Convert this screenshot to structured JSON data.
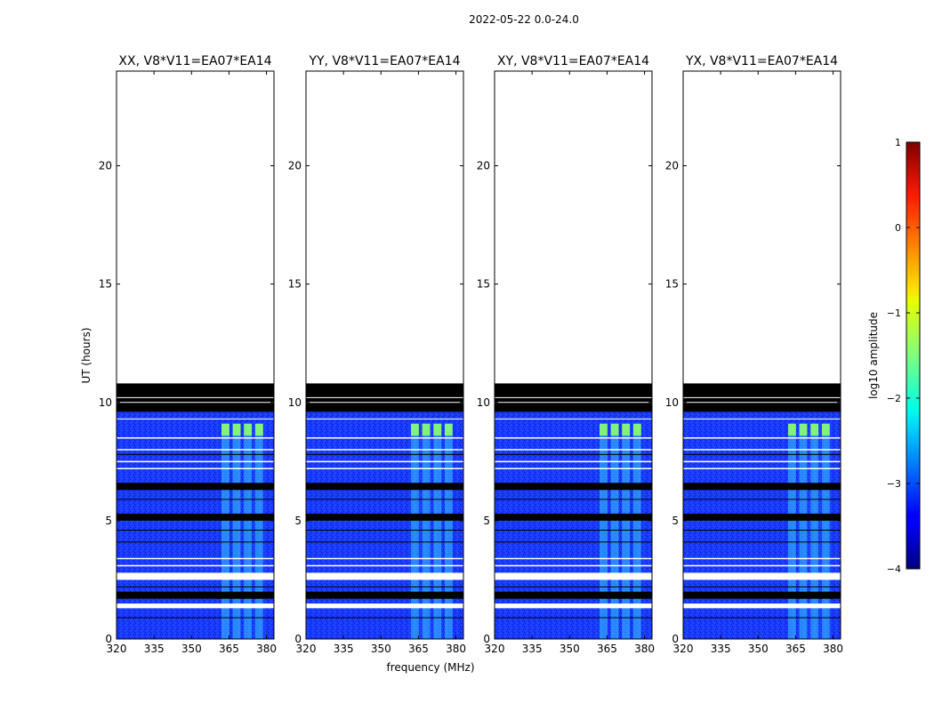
{
  "chart_data": {
    "type": "heatmap",
    "suptitle": "2022-05-22 0.0-24.0",
    "xlabel": "frequency (MHz)",
    "ylabel": "UT (hours)",
    "xlim": [
      320,
      383
    ],
    "ylim": [
      0,
      24
    ],
    "x_ticks": [
      320,
      335,
      350,
      365,
      380
    ],
    "x_tick_labels": [
      "320",
      "335",
      "350",
      "365",
      "380"
    ],
    "y_ticks": [
      0,
      5,
      10,
      15,
      20
    ],
    "y_tick_labels": [
      "0",
      "5",
      "10",
      "15",
      "20"
    ],
    "panels": [
      {
        "title": "XX, V8*V11=EA07*EA14"
      },
      {
        "title": "YY, V8*V11=EA07*EA14"
      },
      {
        "title": "XY, V8*V11=EA07*EA14"
      },
      {
        "title": "YX, V8*V11=EA07*EA14"
      }
    ],
    "data_time_range_hours": [
      0.0,
      10.8
    ],
    "no_data_time_range_hours": [
      10.8,
      24.0
    ],
    "flagged_black_bands_hours": [
      [
        9.6,
        10.8
      ],
      [
        6.3,
        6.6
      ],
      [
        5.0,
        5.3
      ],
      [
        1.7,
        2.0
      ]
    ],
    "flagged_white_bands_hours": [
      [
        1.3,
        1.5
      ],
      [
        2.5,
        2.8
      ]
    ],
    "background_log10_amplitude": -3.3,
    "bright_channel_range_mhz": [
      362,
      380
    ],
    "bright_channel_log10_amplitude": -2.2,
    "colorbar": {
      "label": "log10 amplitude",
      "range": [
        -4,
        1
      ],
      "ticks": [
        1,
        0,
        -1,
        -2,
        -3,
        -4
      ],
      "tick_labels": [
        "1",
        "0",
        "−1",
        "−2",
        "−3",
        "−4"
      ],
      "colormap": "jet"
    }
  }
}
